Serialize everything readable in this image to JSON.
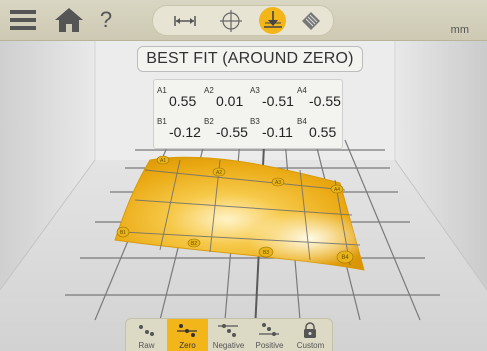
{
  "header": {
    "menu_icon": "hamburger-icon",
    "home_icon": "home-icon",
    "help_label": "?",
    "unit": "mm",
    "modes": [
      {
        "name": "distance-mode",
        "icon": "arrow-distance-icon",
        "active": false
      },
      {
        "name": "crosshair-mode",
        "icon": "crosshair-icon",
        "active": false
      },
      {
        "name": "level-mode",
        "icon": "level-down-icon",
        "active": true
      },
      {
        "name": "surface-mode",
        "icon": "surface-pattern-icon",
        "active": false
      }
    ]
  },
  "result": {
    "title": "BEST FIT (AROUND ZERO)",
    "rows": [
      [
        {
          "label": "A1",
          "value": "0.55"
        },
        {
          "label": "A2",
          "value": "0.01"
        },
        {
          "label": "A3",
          "value": "-0.51"
        },
        {
          "label": "A4",
          "value": "-0.55"
        }
      ],
      [
        {
          "label": "B1",
          "value": "-0.12"
        },
        {
          "label": "B2",
          "value": "-0.55"
        },
        {
          "label": "B3",
          "value": "-0.11"
        },
        {
          "label": "B4",
          "value": "0.55"
        }
      ]
    ]
  },
  "plot": {
    "point_labels": [
      "A1",
      "A2",
      "A3",
      "A4",
      "B1",
      "B2",
      "B3",
      "B4"
    ],
    "colors": {
      "surface": "#f0b41e",
      "highlight": "#fff6d0",
      "point": "#e8b417"
    }
  },
  "fit_modes": [
    {
      "label": "Raw",
      "active": false
    },
    {
      "label": "Zero",
      "active": true
    },
    {
      "label": "Negative",
      "active": false
    },
    {
      "label": "Positive",
      "active": false
    },
    {
      "label": "Custom",
      "active": false
    }
  ],
  "colors": {
    "accent": "#f2b61b",
    "bar": "#d9d6c3"
  }
}
